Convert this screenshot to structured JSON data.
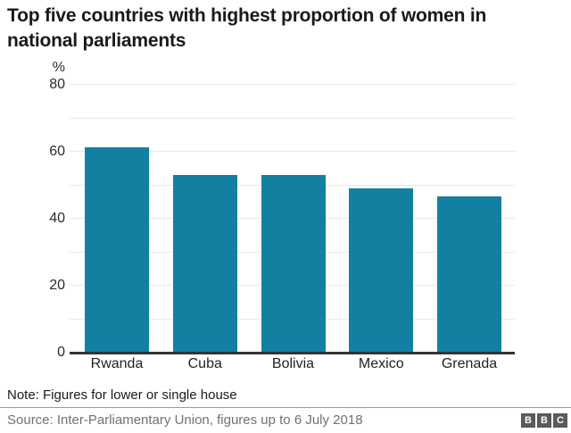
{
  "title": "Top five countries with highest proportion of women in national parliaments",
  "chart_data": {
    "type": "bar",
    "categories": [
      "Rwanda",
      "Cuba",
      "Bolivia",
      "Mexico",
      "Grenada"
    ],
    "values": [
      61.3,
      53.2,
      53.1,
      49.2,
      46.7
    ],
    "title": "Top five countries with highest proportion of women in national parliaments",
    "xlabel": "",
    "ylabel": "%",
    "ylim": [
      0,
      80
    ],
    "yticks": [
      0,
      20,
      40,
      60,
      80
    ],
    "gridlines": [
      10,
      20,
      30,
      40,
      50,
      60,
      70,
      80
    ],
    "grid": true,
    "legend": "none",
    "bar_color": "#1380a1"
  },
  "note": "Note: Figures for lower or single house",
  "source": "Source: Inter-Parliamentary Union, figures up to 6 July 2018",
  "logo": {
    "letters": [
      "B",
      "B",
      "C"
    ]
  },
  "colors": {
    "bar": "#1380a1",
    "baseline": "#333333",
    "gridline": "#e9e9e9",
    "logo_block": "#5a5a5c"
  }
}
